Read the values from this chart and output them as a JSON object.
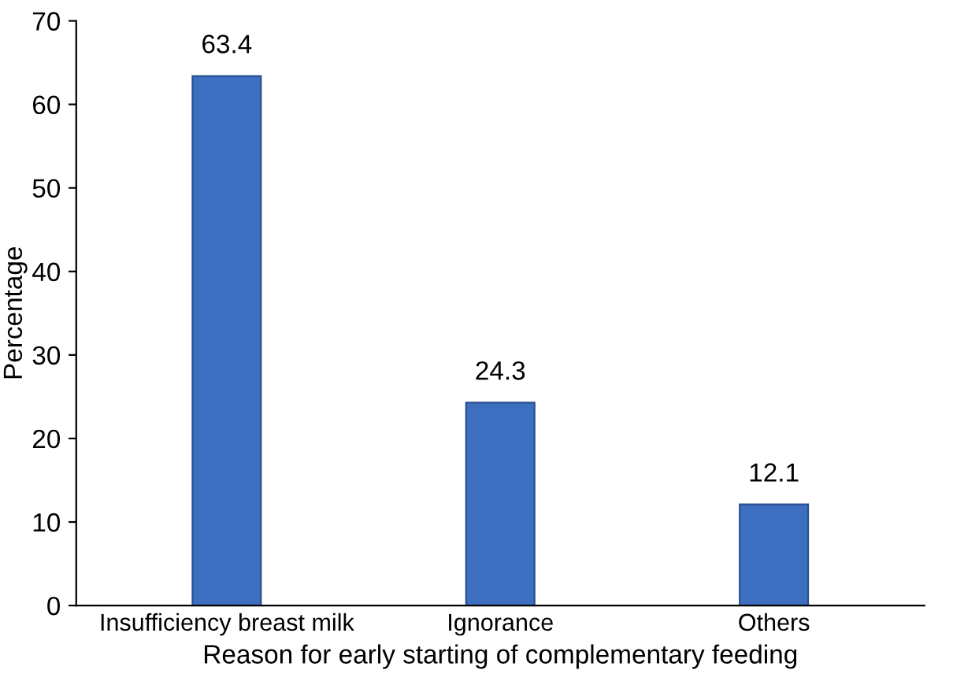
{
  "chart_data": {
    "type": "bar",
    "xlabel": "Reason for early starting of complementary feeding",
    "ylabel": "Percentage",
    "categories": [
      "Insufficiency breast milk",
      "Ignorance",
      "Others"
    ],
    "values": [
      63.4,
      24.3,
      12.1
    ],
    "color": "#3c6fc0",
    "ylim": [
      0,
      70
    ],
    "yticks": [
      0,
      10,
      20,
      30,
      40,
      50,
      60,
      70
    ],
    "grid": false,
    "data_labels": true
  }
}
